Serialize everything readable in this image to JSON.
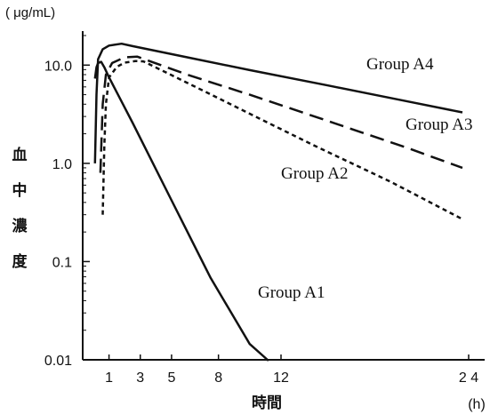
{
  "chart_data": {
    "type": "line",
    "y_unit": "( μg/mL)",
    "ylabel": "血中濃度",
    "xlabel": "時間",
    "x_unit": "(h)",
    "y_scale": "log",
    "ylim": [
      0.01,
      20
    ],
    "xlim": [
      0,
      24
    ],
    "x_ticks": [
      {
        "value": 1,
        "label": "1"
      },
      {
        "value": 3,
        "label": "3"
      },
      {
        "value": 5,
        "label": "5"
      },
      {
        "value": 8,
        "label": "8"
      },
      {
        "value": 12,
        "label": "12"
      },
      {
        "value": 24,
        "label": "2 4"
      }
    ],
    "y_ticks": [
      {
        "value": 10,
        "label": "10.0"
      },
      {
        "value": 1,
        "label": "1.0"
      },
      {
        "value": 0.1,
        "label": "0.1"
      },
      {
        "value": 0.01,
        "label": "0.01"
      }
    ],
    "grid": false,
    "legend": "none",
    "series": [
      {
        "name": "Group A1",
        "style": "solid",
        "points": [
          [
            0.1,
            7.3
          ],
          [
            0.2,
            9.5
          ],
          [
            0.3,
            10.5
          ],
          [
            0.5,
            10.8
          ],
          [
            0.7,
            9.5
          ],
          [
            1.0,
            7.5
          ],
          [
            2.5,
            2.6
          ],
          [
            5.0,
            0.42
          ],
          [
            7.5,
            0.068
          ],
          [
            10.0,
            0.0145
          ],
          [
            11.2,
            0.0098
          ]
        ]
      },
      {
        "name": "Group A2",
        "style": "short-dash",
        "points": [
          [
            0.6,
            0.3
          ],
          [
            0.7,
            1.5
          ],
          [
            0.8,
            4.0
          ],
          [
            1.0,
            7.5
          ],
          [
            1.5,
            9.6
          ],
          [
            2.0,
            10.6
          ],
          [
            2.7,
            11.0
          ],
          [
            3.2,
            10.9
          ],
          [
            6.0,
            6.6
          ],
          [
            10.0,
            3.2
          ],
          [
            14.0,
            1.55
          ],
          [
            19.0,
            0.65
          ],
          [
            23.6,
            0.27
          ]
        ]
      },
      {
        "name": "Group A3",
        "style": "long-dash",
        "points": [
          [
            0.45,
            0.8
          ],
          [
            0.6,
            4.0
          ],
          [
            0.8,
            8.0
          ],
          [
            1.2,
            10.5
          ],
          [
            2.0,
            12.0
          ],
          [
            2.8,
            12.2
          ],
          [
            6.0,
            8.0
          ],
          [
            10.0,
            5.0
          ],
          [
            15.0,
            2.7
          ],
          [
            20.0,
            1.45
          ],
          [
            23.6,
            0.9
          ]
        ]
      },
      {
        "name": "Group A4",
        "style": "solid",
        "points": [
          [
            0.1,
            1.0
          ],
          [
            0.2,
            5.0
          ],
          [
            0.3,
            11.5
          ],
          [
            0.6,
            14.5
          ],
          [
            1.0,
            15.8
          ],
          [
            1.8,
            16.5
          ],
          [
            2.5,
            15.6
          ],
          [
            6.0,
            12.0
          ],
          [
            10.0,
            8.9
          ],
          [
            15.0,
            6.2
          ],
          [
            20.0,
            4.3
          ],
          [
            23.6,
            3.3
          ]
        ]
      }
    ],
    "annotations": [
      {
        "text": "Group A4",
        "series": 3
      },
      {
        "text": "Group A3",
        "series": 2
      },
      {
        "text": "Group A2",
        "series": 1
      },
      {
        "text": "Group A1",
        "series": 0
      }
    ]
  }
}
